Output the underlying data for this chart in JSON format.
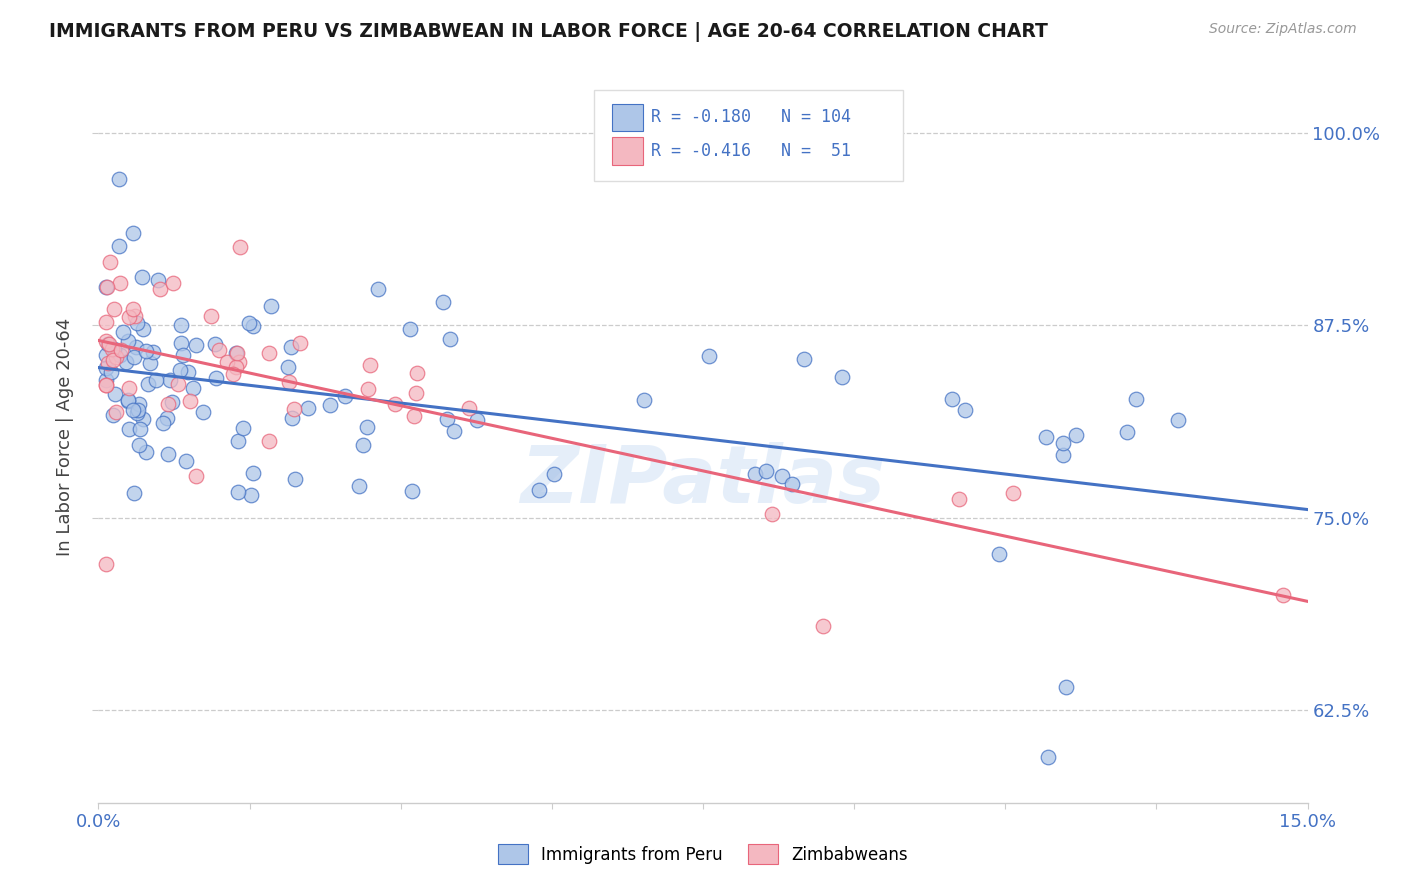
{
  "title": "IMMIGRANTS FROM PERU VS ZIMBABWEAN IN LABOR FORCE | AGE 20-64 CORRELATION CHART",
  "source": "Source: ZipAtlas.com",
  "ylabel": "In Labor Force | Age 20-64",
  "ytick_labels": [
    "100.0%",
    "87.5%",
    "75.0%",
    "62.5%"
  ],
  "ytick_values": [
    1.0,
    0.875,
    0.75,
    0.625
  ],
  "xlim": [
    0.0,
    0.15
  ],
  "ylim": [
    0.565,
    1.04
  ],
  "xtick_show_only_ends": true,
  "xtick_count": 9,
  "legend_r_peru": "-0.180",
  "legend_n_peru": "104",
  "legend_r_zimbabwe": "-0.416",
  "legend_n_zimbabwe": "51",
  "color_peru_fill": "#aec6e8",
  "color_peru_edge": "#4472c4",
  "color_zimbabwe_fill": "#f4b8c1",
  "color_zimbabwe_edge": "#e8657a",
  "color_line_peru": "#4472c4",
  "color_line_zimbabwe": "#e8657a",
  "color_axis_text": "#4472c4",
  "watermark": "ZIPatlas",
  "grid_color": "#cccccc",
  "background": "#ffffff"
}
